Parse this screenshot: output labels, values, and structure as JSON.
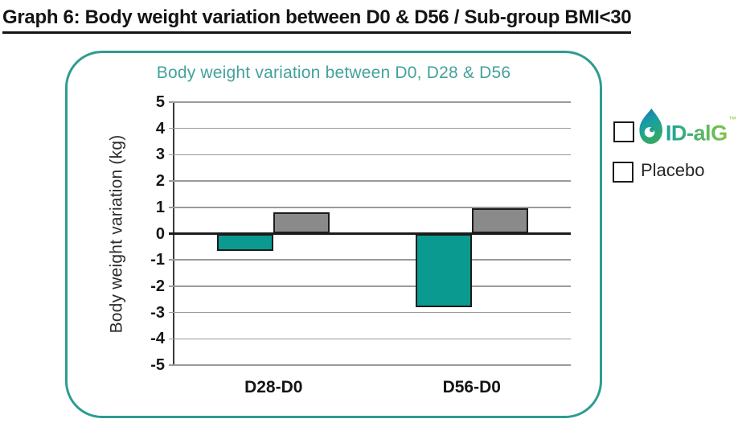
{
  "header": {
    "title": "Graph 6: Body weight variation between D0 & D56 / Sub-group BMI<30"
  },
  "chart_panel": {
    "title": "Body weight variation between D0, D28 & D56",
    "border_color": "#2d9c92",
    "title_color": "#43a29a"
  },
  "legend": {
    "idalg": {
      "label": "ID-alG",
      "trademark": "™",
      "swatch_color": "#0a9a8f"
    },
    "placebo": {
      "label": "Placebo",
      "swatch_color": "#8a8a8a"
    }
  },
  "chart_data": {
    "type": "bar",
    "title": "Body weight variation between D0, D28 & D56",
    "categories": [
      "D28-D0",
      "D56-D0"
    ],
    "series": [
      {
        "name": "ID-alG",
        "color": "#0a9a8f",
        "values": [
          -0.65,
          -2.8
        ]
      },
      {
        "name": "Placebo",
        "color": "#8a8a8a",
        "values": [
          0.8,
          0.95
        ]
      }
    ],
    "xlabel": "",
    "ylabel": "Body weight variation (kg)",
    "ylim": [
      -5,
      5
    ],
    "yticks": [
      5,
      4,
      3,
      2,
      1,
      0,
      -1,
      -2,
      -3,
      -4,
      -5
    ],
    "grid": "horizontal",
    "zero_line": true,
    "legend_position": "right-outside",
    "bar_outline_color": "#1c1c1c"
  }
}
